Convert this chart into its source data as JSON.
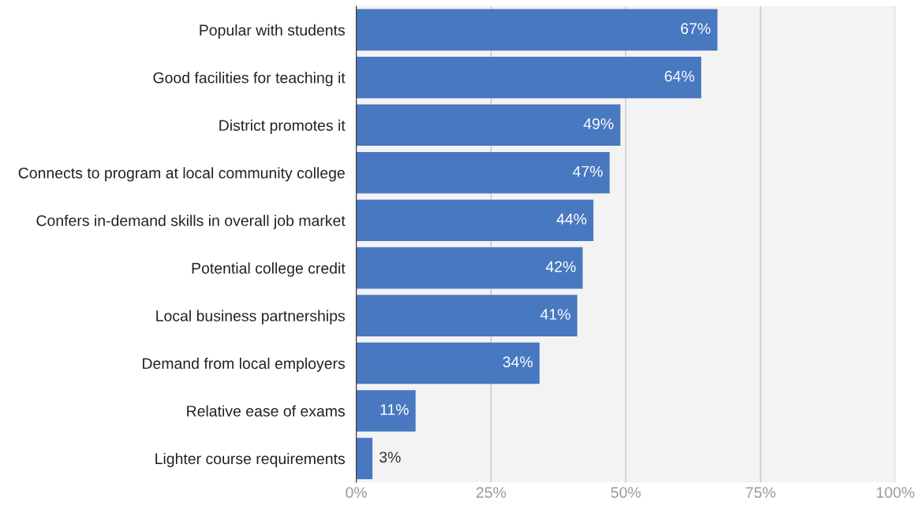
{
  "chart_data": {
    "type": "bar",
    "orientation": "horizontal",
    "categories": [
      "Popular with students",
      "Good facilities for teaching it",
      "District promotes it",
      "Connects to program at local community college",
      "Confers in-demand skills in overall job market",
      "Potential college credit",
      "Local business partnerships",
      "Demand from local employers",
      "Relative ease of exams",
      "Lighter course requirements"
    ],
    "values": [
      67,
      64,
      49,
      47,
      44,
      42,
      41,
      34,
      11,
      3
    ],
    "value_labels": [
      "67%",
      "64%",
      "49%",
      "47%",
      "44%",
      "42%",
      "41%",
      "34%",
      "11%",
      "3%"
    ],
    "color": "#4878c0",
    "xlim": [
      0,
      100
    ],
    "xticks": [
      {
        "value": 0,
        "label": "0%"
      },
      {
        "value": 25,
        "label": "25%"
      },
      {
        "value": 50,
        "label": "50%"
      },
      {
        "value": 75,
        "label": "75%"
      },
      {
        "value": 100,
        "label": "100%"
      }
    ],
    "grid": "x"
  }
}
